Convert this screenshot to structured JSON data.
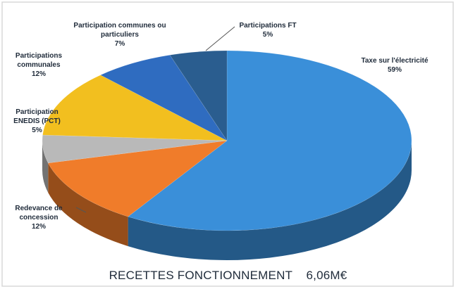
{
  "chart_data": {
    "type": "pie3d",
    "title": "RECETTES FONCTIONNEMENT    6,06M€",
    "categories": [
      "Taxe sur l'électricité",
      "Redevance de concession",
      "Participation ENEDIS (PCT)",
      "Participations communales",
      "Participation communes ou particuliers",
      "Participations FT"
    ],
    "values": [
      59,
      12,
      5,
      12,
      7,
      5
    ],
    "value_labels": [
      "59%",
      "12%",
      "5%",
      "12%",
      "7%",
      "5%"
    ],
    "colors": [
      "#3a8fd9",
      "#f07c2a",
      "#b9b9b9",
      "#f2bf1f",
      "#2f6cc0",
      "#2a5d8f"
    ]
  }
}
